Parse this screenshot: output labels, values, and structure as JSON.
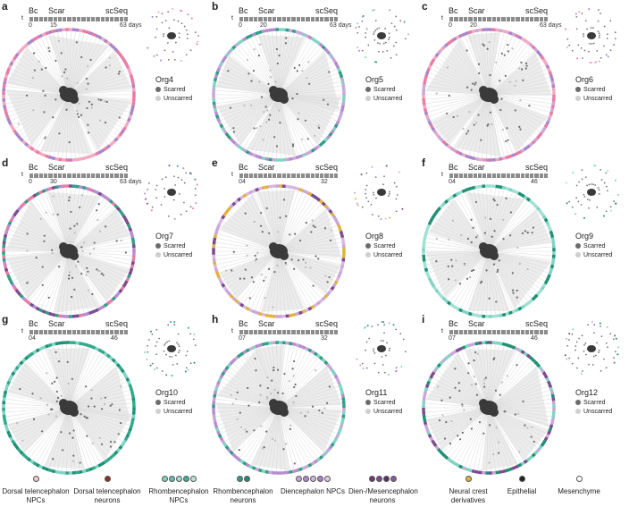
{
  "timeline_labels": {
    "bc": "Bc",
    "scar": "Scar",
    "scseq": "scSeq",
    "t": "t",
    "days": "days"
  },
  "legend_scarred": "Scarred",
  "legend_unscarred": "Unscarred",
  "colors": {
    "scarred": "#6b6b6b",
    "unscarred": "#cfcfcf",
    "dorsal_tel_npc": "#f7c6d0",
    "dorsal_tel_neu": "#8c2f22",
    "rhomb_npc": "#7fd3c4",
    "rhomb_neu": "#1e8f74",
    "dien_npc": "#c9a5d9",
    "dien_mes_neu": "#6c3a7c",
    "neural_crest": "#e2b23a",
    "epithelial": "#222222",
    "mesenchyme": "#ffffff"
  },
  "panels": [
    {
      "letter": "a",
      "org": "Org4",
      "ticks": [
        "0",
        "15",
        "63"
      ],
      "days": true,
      "ring": [
        "#f2a8c1",
        "#a884c9",
        "#e87aa5"
      ]
    },
    {
      "letter": "b",
      "org": "Org5",
      "ticks": [
        "0",
        "20",
        "63"
      ],
      "days": true,
      "ring": [
        "#c9a5d9",
        "#2f9e84",
        "#7fd3c4",
        "#b58bd0"
      ]
    },
    {
      "letter": "c",
      "org": "Org6",
      "ticks": [
        "0",
        "20",
        "63"
      ],
      "days": true,
      "ring": [
        "#f2a8c1",
        "#c9a5d9",
        "#e87aa5",
        "#a884c9"
      ]
    },
    {
      "letter": "d",
      "org": "Org7",
      "ticks": [
        "0",
        "30",
        "63"
      ],
      "days": true,
      "ring": [
        "#7a4a8f",
        "#b58bd0",
        "#e87aa5",
        "#2f9e84"
      ]
    },
    {
      "letter": "e",
      "org": "Org8",
      "ticks": [
        "0",
        "4",
        "32"
      ],
      "days": false,
      "ring": [
        "#c9a5d9",
        "#e2b23a",
        "#d6b7e3",
        "#7a4a8f"
      ]
    },
    {
      "letter": "f",
      "org": "Org9",
      "ticks": [
        "0",
        "4",
        "46"
      ],
      "days": false,
      "ring": [
        "#7fd3c4",
        "#1e8f74",
        "#9fe0d3"
      ]
    },
    {
      "letter": "g",
      "org": "Org10",
      "ticks": [
        "0",
        "4",
        "46"
      ],
      "days": false,
      "ring": [
        "#1e8f74",
        "#7fd3c4",
        "#2fa88a"
      ]
    },
    {
      "letter": "h",
      "org": "Org11",
      "ticks": [
        "0",
        "7",
        "32"
      ],
      "days": false,
      "ring": [
        "#c9a5d9",
        "#7fd3c4",
        "#b58bd0",
        "#2f9e84"
      ]
    },
    {
      "letter": "i",
      "org": "Org12",
      "ticks": [
        "0",
        "7",
        "46"
      ],
      "days": false,
      "ring": [
        "#7fd3c4",
        "#1e8f74",
        "#7a4a8f",
        "#c9a5d9"
      ]
    }
  ],
  "legend": [
    {
      "label": "Dorsal telencephalon NPCs",
      "dots": [
        "#f7c6d0"
      ]
    },
    {
      "label": "Dorsal telencephalon neurons",
      "dots": [
        "#8c2f22"
      ]
    },
    {
      "label": "Rhombencephalon NPCs",
      "dots": [
        "#7fd3c4",
        "#5fc3b0",
        "#9fe0d3",
        "#3fb29a",
        "#b7e8dc"
      ]
    },
    {
      "label": "Rhombencephalon neurons",
      "dots": [
        "#2f9e84",
        "#1e8f74"
      ]
    },
    {
      "label": "Diencephalon NPCs",
      "dots": [
        "#c9a5d9",
        "#b58bd0",
        "#d6b7e3",
        "#a884c9",
        "#e1c9ec"
      ]
    },
    {
      "label": "Dien-/Mesencephalon neurons",
      "dots": [
        "#6c3a7c",
        "#7a4a8f",
        "#5a2f68",
        "#8a5a9f"
      ]
    },
    {
      "label": "Neural crest derivatives",
      "dots": [
        "#e2b23a"
      ]
    },
    {
      "label": "Epithelial",
      "dots": [
        "#222222"
      ]
    },
    {
      "label": "Mesenchyme",
      "dots": [
        "#ffffff"
      ]
    }
  ]
}
